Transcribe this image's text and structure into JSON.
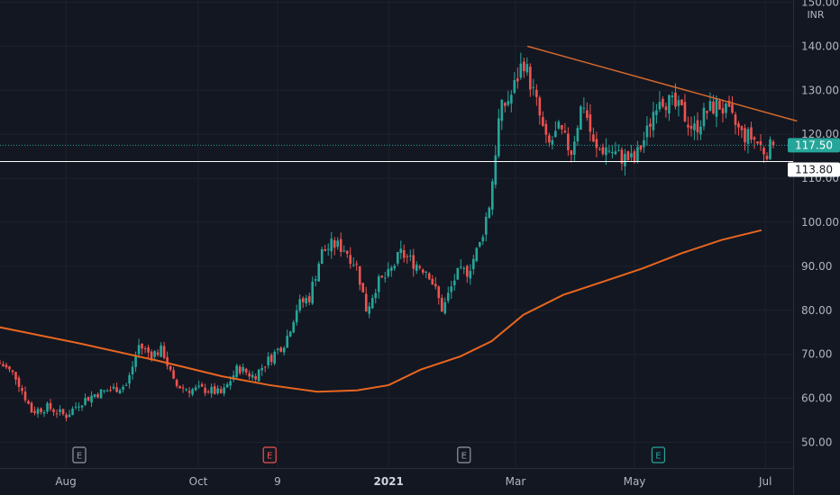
{
  "chart_data": {
    "type": "candlestick",
    "currency": "INR",
    "ylim": [
      45,
      152
    ],
    "y_ticks": [
      "50.00",
      "60.00",
      "70.00",
      "80.00",
      "90.00",
      "100.00",
      "110.00",
      "120.00",
      "130.00",
      "140.00",
      "150.00"
    ],
    "x_ticks": [
      {
        "label": "Aug",
        "t": 0.083,
        "bold": false
      },
      {
        "label": "Oct",
        "t": 0.25,
        "bold": false
      },
      {
        "label": "9",
        "t": 0.35,
        "bold": false
      },
      {
        "label": "2021",
        "t": 0.49,
        "bold": true
      },
      {
        "label": "Mar",
        "t": 0.65,
        "bold": false
      },
      {
        "label": "May",
        "t": 0.8,
        "bold": false
      },
      {
        "label": "Jul",
        "t": 0.965,
        "bold": false
      }
    ],
    "price_series": [
      {
        "t": 0.0,
        "v": 68
      },
      {
        "t": 0.02,
        "v": 65
      },
      {
        "t": 0.04,
        "v": 57
      },
      {
        "t": 0.06,
        "v": 58
      },
      {
        "t": 0.083,
        "v": 56
      },
      {
        "t": 0.1,
        "v": 59
      },
      {
        "t": 0.12,
        "v": 61
      },
      {
        "t": 0.14,
        "v": 62
      },
      {
        "t": 0.16,
        "v": 63
      },
      {
        "t": 0.175,
        "v": 72
      },
      {
        "t": 0.19,
        "v": 70
      },
      {
        "t": 0.205,
        "v": 71
      },
      {
        "t": 0.22,
        "v": 63
      },
      {
        "t": 0.24,
        "v": 62
      },
      {
        "t": 0.26,
        "v": 62
      },
      {
        "t": 0.28,
        "v": 61
      },
      {
        "t": 0.3,
        "v": 67
      },
      {
        "t": 0.32,
        "v": 65
      },
      {
        "t": 0.34,
        "v": 69
      },
      {
        "t": 0.36,
        "v": 73
      },
      {
        "t": 0.375,
        "v": 81
      },
      {
        "t": 0.39,
        "v": 83
      },
      {
        "t": 0.405,
        "v": 93
      },
      {
        "t": 0.42,
        "v": 95
      },
      {
        "t": 0.435,
        "v": 94
      },
      {
        "t": 0.45,
        "v": 90
      },
      {
        "t": 0.462,
        "v": 80
      },
      {
        "t": 0.475,
        "v": 86
      },
      {
        "t": 0.49,
        "v": 88
      },
      {
        "t": 0.505,
        "v": 93
      },
      {
        "t": 0.52,
        "v": 91
      },
      {
        "t": 0.54,
        "v": 89
      },
      {
        "t": 0.558,
        "v": 80
      },
      {
        "t": 0.575,
        "v": 88
      },
      {
        "t": 0.59,
        "v": 89
      },
      {
        "t": 0.605,
        "v": 95
      },
      {
        "t": 0.618,
        "v": 105
      },
      {
        "t": 0.63,
        "v": 125
      },
      {
        "t": 0.645,
        "v": 129
      },
      {
        "t": 0.66,
        "v": 137
      },
      {
        "t": 0.675,
        "v": 128
      },
      {
        "t": 0.69,
        "v": 117
      },
      {
        "t": 0.705,
        "v": 121
      },
      {
        "t": 0.72,
        "v": 116
      },
      {
        "t": 0.735,
        "v": 128
      },
      {
        "t": 0.75,
        "v": 116
      },
      {
        "t": 0.765,
        "v": 117
      },
      {
        "t": 0.78,
        "v": 115
      },
      {
        "t": 0.8,
        "v": 114
      },
      {
        "t": 0.815,
        "v": 120
      },
      {
        "t": 0.83,
        "v": 129
      },
      {
        "t": 0.845,
        "v": 127
      },
      {
        "t": 0.86,
        "v": 125
      },
      {
        "t": 0.875,
        "v": 121
      },
      {
        "t": 0.89,
        "v": 125
      },
      {
        "t": 0.905,
        "v": 127
      },
      {
        "t": 0.92,
        "v": 124
      },
      {
        "t": 0.935,
        "v": 120
      },
      {
        "t": 0.95,
        "v": 119
      },
      {
        "t": 0.965,
        "v": 116
      },
      {
        "t": 0.975,
        "v": 117.5
      }
    ],
    "moving_average": [
      {
        "t": -0.01,
        "v": 76.5
      },
      {
        "t": 0.1,
        "v": 72.5
      },
      {
        "t": 0.2,
        "v": 68.5
      },
      {
        "t": 0.28,
        "v": 65
      },
      {
        "t": 0.34,
        "v": 63
      },
      {
        "t": 0.4,
        "v": 61.5
      },
      {
        "t": 0.45,
        "v": 61.8
      },
      {
        "t": 0.49,
        "v": 63
      },
      {
        "t": 0.53,
        "v": 66.5
      },
      {
        "t": 0.58,
        "v": 69.5
      },
      {
        "t": 0.62,
        "v": 73
      },
      {
        "t": 0.66,
        "v": 79
      },
      {
        "t": 0.71,
        "v": 83.5
      },
      {
        "t": 0.76,
        "v": 86.5
      },
      {
        "t": 0.81,
        "v": 89.5
      },
      {
        "t": 0.86,
        "v": 93
      },
      {
        "t": 0.91,
        "v": 96
      },
      {
        "t": 0.96,
        "v": 98.2
      }
    ],
    "trendline": {
      "start": {
        "t": 0.665,
        "v": 140
      },
      "end": {
        "t": 1.005,
        "v": 123
      }
    },
    "current_price": {
      "value": 117.5,
      "label": "117.50",
      "color": "#26a69a"
    },
    "support_level": {
      "value": 113.8,
      "label": "113.80"
    },
    "earnings_markers": [
      {
        "t": 0.1,
        "label": "E",
        "color": "#9598a1"
      },
      {
        "t": 0.34,
        "label": "E",
        "color": "#ef5350"
      },
      {
        "t": 0.585,
        "label": "E",
        "color": "#9598a1"
      },
      {
        "t": 0.83,
        "label": "E",
        "color": "#26a69a"
      }
    ],
    "colors": {
      "background": "#131722",
      "grid": "#1e222d",
      "up": "#26a69a",
      "down": "#ef5350",
      "ma": "#e8661f",
      "trendline": "#d4682c",
      "support": "#ffffff",
      "text": "#b2b5be"
    }
  }
}
